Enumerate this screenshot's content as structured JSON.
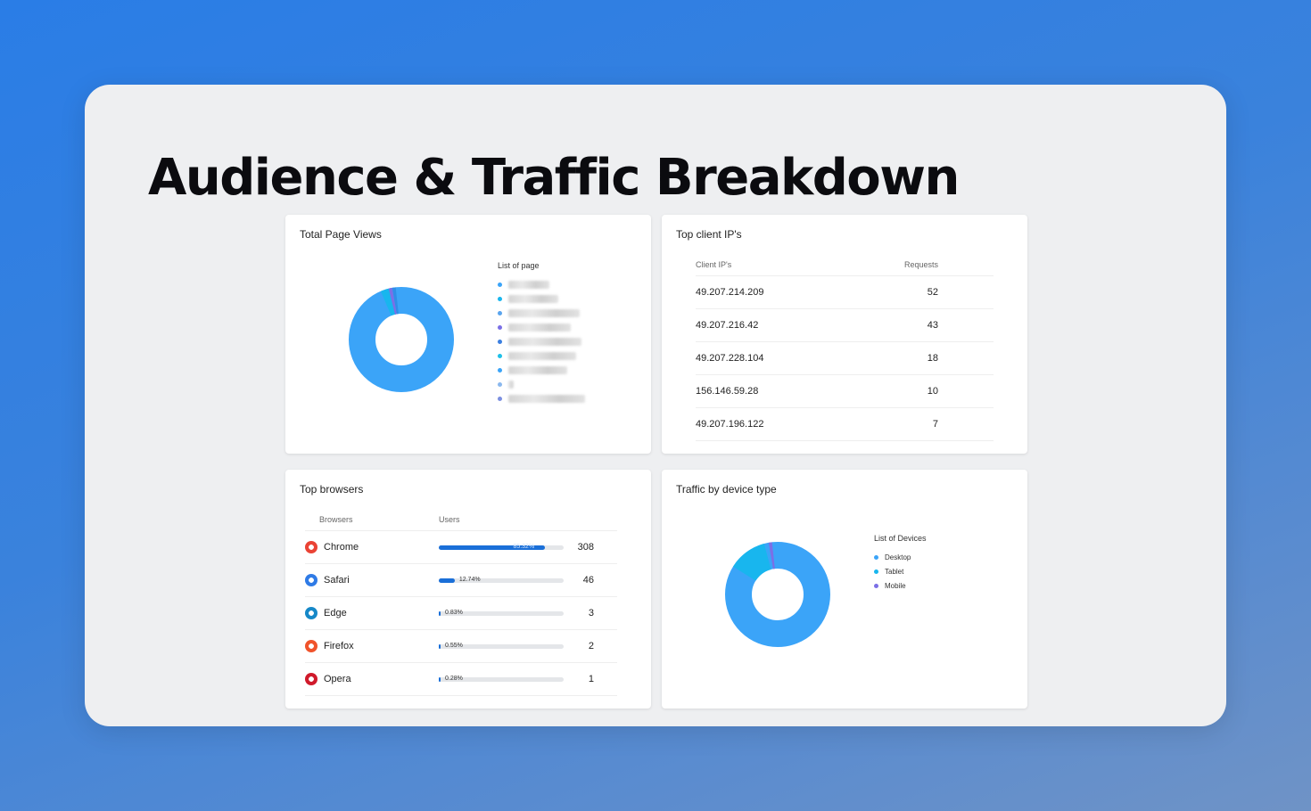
{
  "title": "Audience & Traffic Breakdown",
  "colors": {
    "donut_primary": "#3ba4f8",
    "donut_accent": "#18b6ee",
    "donut_purple": "#7b6fe6",
    "bar": "#1a6fd8"
  },
  "page_views": {
    "title": "Total Page Views",
    "legend_title": "List of page",
    "legend_dot_colors": [
      "#3ba4f8",
      "#18b6ee",
      "#5aa4ee",
      "#7b6fe6",
      "#3b7fe0",
      "#1ec0e8",
      "#3ba4f8",
      "#8bb8ee",
      "#7b8fe0"
    ]
  },
  "client_ips": {
    "title": "Top client IP's",
    "col_ip": "Client IP's",
    "col_requests": "Requests",
    "rows": [
      {
        "ip": "49.207.214.209",
        "requests": "52"
      },
      {
        "ip": "49.207.216.42",
        "requests": "43"
      },
      {
        "ip": "49.207.228.104",
        "requests": "18"
      },
      {
        "ip": "156.146.59.28",
        "requests": "10"
      },
      {
        "ip": "49.207.196.122",
        "requests": "7"
      }
    ]
  },
  "browsers": {
    "title": "Top browsers",
    "col_browser": "Browsers",
    "col_users": "Users",
    "rows": [
      {
        "name": "Chrome",
        "icon": "chrome-icon",
        "icon_color": "#ea4335",
        "pct_label": "85.32%",
        "share": 0.8532,
        "users": "308"
      },
      {
        "name": "Safari",
        "icon": "safari-icon",
        "icon_color": "#2f7be6",
        "pct_label": "12.74%",
        "share": 0.1274,
        "users": "46"
      },
      {
        "name": "Edge",
        "icon": "edge-icon",
        "icon_color": "#1688c8",
        "pct_label": "0.83%",
        "share": 0.0083,
        "users": "3"
      },
      {
        "name": "Firefox",
        "icon": "firefox-icon",
        "icon_color": "#f0532b",
        "pct_label": "0.55%",
        "share": 0.0055,
        "users": "2"
      },
      {
        "name": "Opera",
        "icon": "opera-icon",
        "icon_color": "#d01a2b",
        "pct_label": "0.28%",
        "share": 0.0028,
        "users": "1"
      }
    ]
  },
  "devices": {
    "title": "Traffic by device type",
    "legend_title": "List of Devices",
    "items": [
      {
        "label": "Desktop",
        "color": "#3ba4f8"
      },
      {
        "label": "Tablet",
        "color": "#18b6ee"
      },
      {
        "label": "Mobile",
        "color": "#7b6fe6"
      }
    ]
  }
}
